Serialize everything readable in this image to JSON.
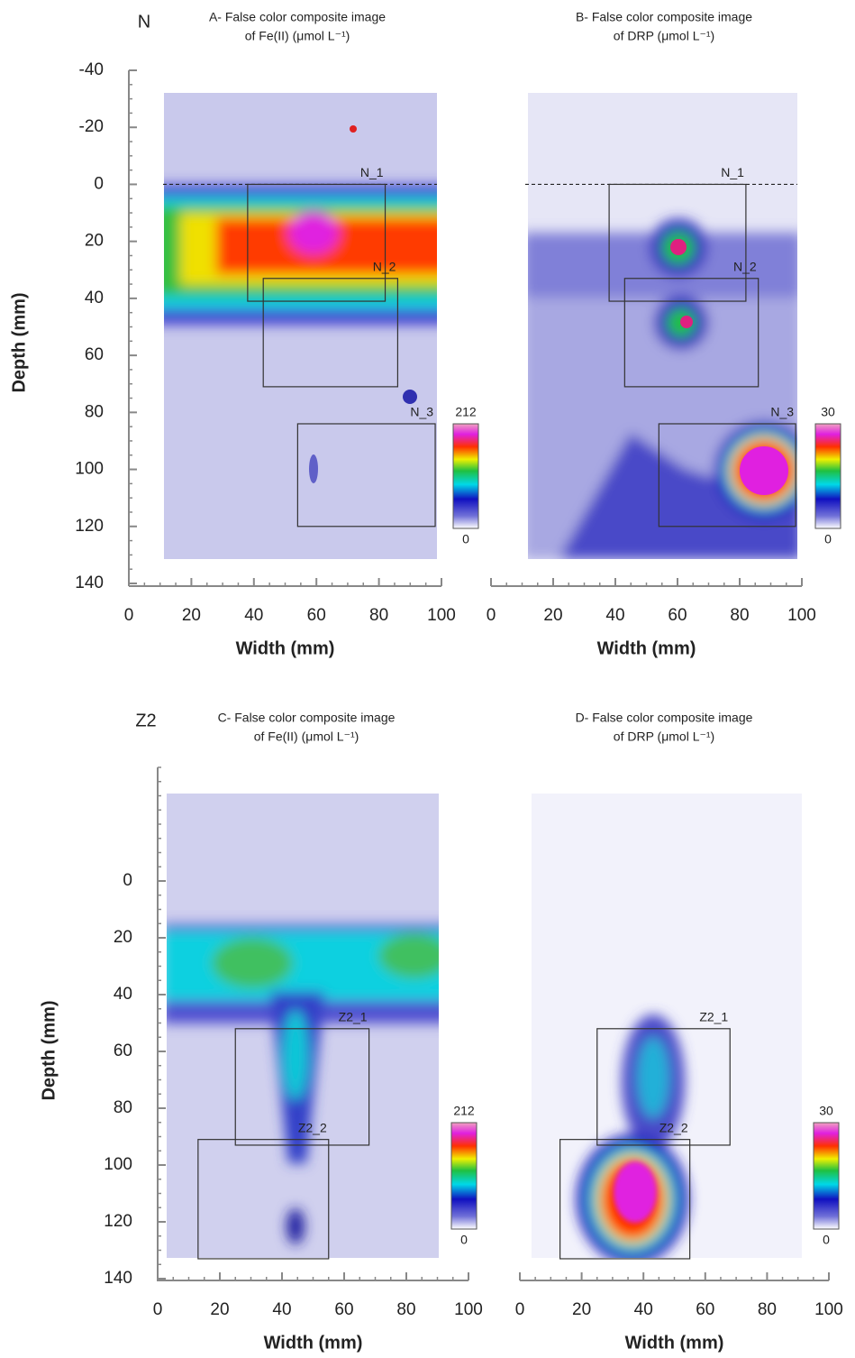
{
  "chart_data": [
    {
      "type": "image",
      "group": "N",
      "title": [
        "A- False color composite image",
        "of Fe(II) (μmol L⁻¹)"
      ],
      "xlabel": "Width (mm)",
      "ylabel": "Depth (mm)",
      "xlim": [
        0,
        100
      ],
      "ylim": [
        -40,
        140
      ],
      "xticks": [
        0,
        20,
        40,
        60,
        80,
        100
      ],
      "yticks": [
        -40,
        -20,
        0,
        20,
        40,
        60,
        80,
        100,
        120,
        140
      ],
      "hline": 0,
      "colorbar": {
        "lim": [
          0,
          212
        ]
      },
      "regions": [
        {
          "label": "N_1",
          "x": [
            38,
            82
          ],
          "y": [
            0,
            41
          ]
        },
        {
          "label": "N_2",
          "x": [
            43,
            86
          ],
          "y": [
            33,
            71
          ]
        },
        {
          "label": "N_3",
          "x": [
            54,
            98
          ],
          "y": [
            84,
            120
          ]
        }
      ]
    },
    {
      "type": "image",
      "title": [
        "B- False color composite image",
        "of DRP (μmol L⁻¹)"
      ],
      "xlabel": "Width (mm)",
      "xlim": [
        0,
        100
      ],
      "ylim": [
        -40,
        140
      ],
      "xticks": [
        0,
        20,
        40,
        60,
        80,
        100
      ],
      "hline": 0,
      "colorbar": {
        "lim": [
          0,
          30
        ]
      },
      "regions": [
        {
          "label": "N_1",
          "x": [
            38,
            82
          ],
          "y": [
            0,
            41
          ]
        },
        {
          "label": "N_2",
          "x": [
            43,
            86
          ],
          "y": [
            33,
            71
          ]
        },
        {
          "label": "N_3",
          "x": [
            54,
            98
          ],
          "y": [
            84,
            120
          ]
        }
      ]
    },
    {
      "type": "image",
      "group": "Z2",
      "title": [
        "C- False color composite image",
        "of Fe(II) (μmol L⁻¹)"
      ],
      "xlabel": "Width (mm)",
      "ylabel": "Depth (mm)",
      "xlim": [
        0,
        100
      ],
      "ylim": [
        -40,
        140
      ],
      "xticks": [
        0,
        20,
        40,
        60,
        80,
        100
      ],
      "yticks": [
        0,
        20,
        40,
        60,
        80,
        100,
        120,
        140
      ],
      "colorbar": {
        "lim": [
          0,
          212
        ]
      },
      "regions": [
        {
          "label": "Z2_1",
          "x": [
            25,
            68
          ],
          "y": [
            52,
            93
          ]
        },
        {
          "label": "Z2_2",
          "x": [
            13,
            55
          ],
          "y": [
            91,
            133
          ]
        }
      ]
    },
    {
      "type": "image",
      "title": [
        "D- False color composite image",
        "of DRP (μmol L⁻¹)"
      ],
      "xlabel": "Width (mm)",
      "xlim": [
        0,
        100
      ],
      "ylim": [
        -40,
        140
      ],
      "xticks": [
        0,
        20,
        40,
        60,
        80,
        100
      ],
      "colorbar": {
        "lim": [
          0,
          30
        ]
      },
      "regions": [
        {
          "label": "Z2_1",
          "x": [
            25,
            68
          ],
          "y": [
            52,
            93
          ]
        },
        {
          "label": "Z2_2",
          "x": [
            13,
            55
          ],
          "y": [
            91,
            133
          ]
        }
      ]
    }
  ]
}
